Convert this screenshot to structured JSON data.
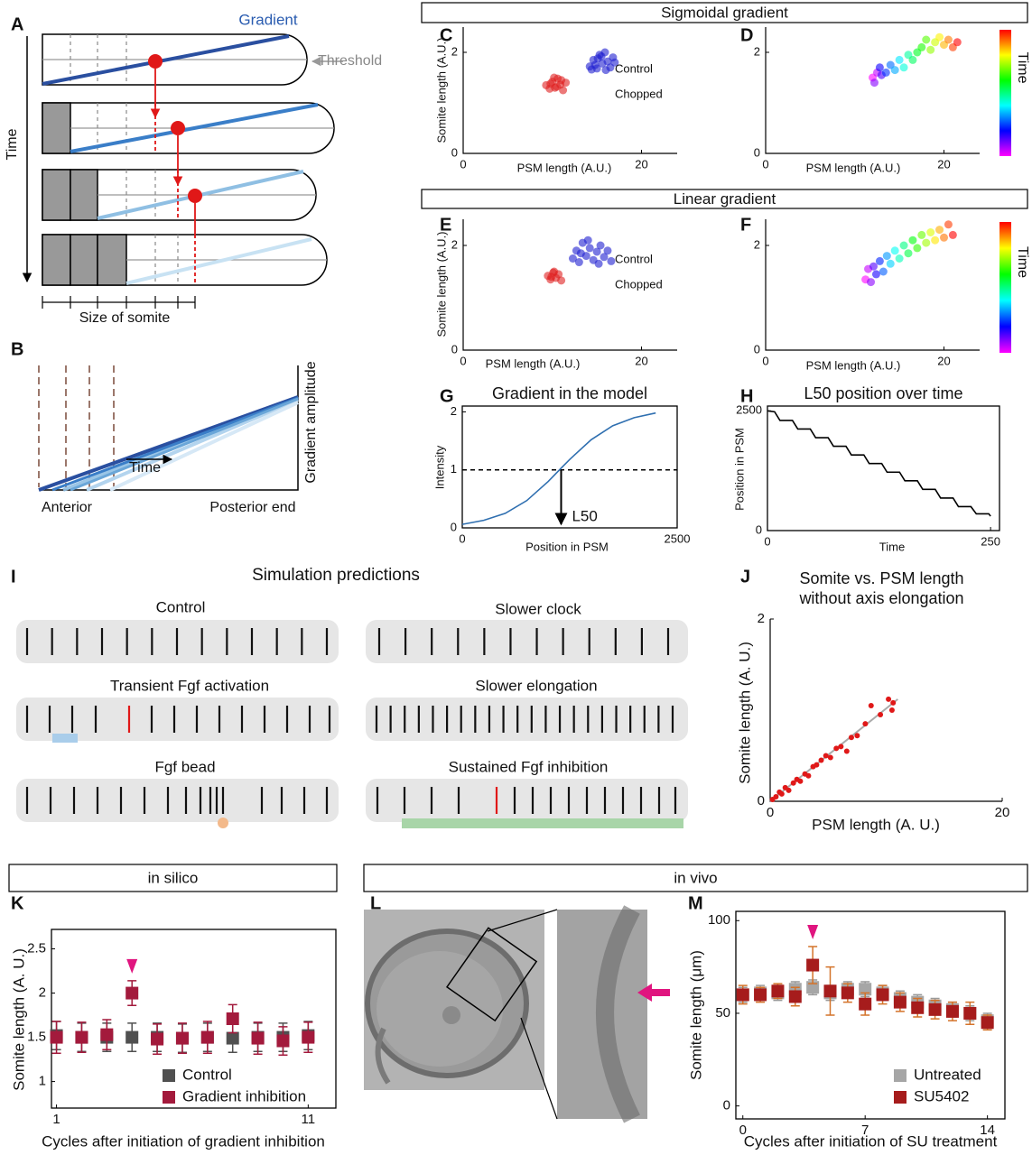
{
  "panel_letters": [
    "A",
    "B",
    "C",
    "D",
    "E",
    "F",
    "G",
    "H",
    "I",
    "J",
    "K",
    "L",
    "M"
  ],
  "headers": [
    "Sigmoidal gradient",
    "Linear gradient",
    "in silico",
    "in vivo"
  ],
  "diagram_a": {
    "gradient": "Gradient",
    "threshold": "Threshold",
    "time": "Time",
    "size": "Size of somite"
  },
  "diagram_b": {
    "time": "Time",
    "anterior": "Anterior",
    "posterior": "Posterior end",
    "amplitude": "Gradient amplitude"
  },
  "simulation": {
    "title": "Simulation predictions",
    "conditions": [
      {
        "label": "Control",
        "color": "#111111"
      },
      {
        "label": "Slower clock",
        "color": "#3b3b9a"
      },
      {
        "label": "Transient Fgf activation",
        "color": "#3a8dc5"
      },
      {
        "label": "Slower elongation",
        "color": "#7a1a1a"
      },
      {
        "label": "Fgf bead",
        "color": "#e07b2a"
      },
      {
        "label": "Sustained Fgf inhibition",
        "color": "#2e8b3a"
      }
    ]
  },
  "chart_data": [
    {
      "type": "scatter",
      "frame": "axes",
      "xlabel": "PSM length (A.U.)",
      "ylabel": "Somite length (A.U.)",
      "xlim": [
        0,
        24
      ],
      "ylim": [
        0,
        2.5
      ],
      "xticks": [
        0,
        20
      ],
      "yticks": [
        0,
        2
      ],
      "legend": true,
      "series": [
        {
          "name": "Control",
          "color": "#1f1fd0",
          "x": [
            14.2,
            14.6,
            15.0,
            15.3,
            15.6,
            15.9,
            16.2,
            16.5,
            16.8,
            15.1,
            14.8,
            16.0,
            17.0,
            15.5,
            14.4
          ],
          "values": [
            1.72,
            1.85,
            1.68,
            1.95,
            1.78,
            2.0,
            1.82,
            1.7,
            1.9,
            1.88,
            1.75,
            1.65,
            1.8,
            1.92,
            1.66
          ]
        },
        {
          "name": "Chopped",
          "color": "#e02020",
          "x": [
            9.3,
            9.7,
            10.0,
            10.3,
            10.6,
            10.9,
            11.2,
            11.5,
            10.2,
            9.8,
            11.0,
            10.5
          ],
          "values": [
            1.35,
            1.28,
            1.42,
            1.3,
            1.48,
            1.36,
            1.25,
            1.4,
            1.5,
            1.38,
            1.45,
            1.32
          ]
        }
      ]
    },
    {
      "type": "scatter",
      "frame": "axes",
      "xlabel": "PSM length (A.U.)",
      "colormap": "rainbow",
      "colorbar_label": "Time",
      "xlim": [
        0,
        24
      ],
      "ylim": [
        0,
        2.5
      ],
      "xticks": [
        0,
        20
      ],
      "yticks": [
        0,
        2
      ],
      "series": [
        {
          "x": [
            12,
            12.5,
            12.2,
            13,
            12.8,
            13.5,
            14,
            14.5,
            15,
            15.5,
            16,
            16.5,
            17,
            17.5,
            18,
            18.5,
            19,
            19.5,
            20,
            20.5,
            21,
            21.5
          ],
          "values": [
            1.5,
            1.6,
            1.4,
            1.55,
            1.7,
            1.6,
            1.75,
            1.65,
            1.85,
            1.7,
            1.95,
            1.85,
            2.0,
            2.1,
            2.25,
            2.05,
            2.2,
            2.3,
            2.15,
            2.25,
            2.1,
            2.2
          ]
        }
      ]
    },
    {
      "type": "scatter",
      "frame": "axes",
      "xlabel": "PSM length (A.U.)",
      "ylabel": "Somite length (A.U.)",
      "xlim": [
        0,
        24
      ],
      "ylim": [
        0,
        2.5
      ],
      "xticks": [
        0,
        20
      ],
      "yticks": [
        0,
        2
      ],
      "legend": true,
      "series": [
        {
          "name": "Control",
          "color": "#1f1fd0",
          "x": [
            12.3,
            12.7,
            13.0,
            13.4,
            13.8,
            14.2,
            14.6,
            15.0,
            15.4,
            15.8,
            16.2,
            16.6,
            13.2,
            14.0,
            15.2
          ],
          "values": [
            1.75,
            1.9,
            1.68,
            2.05,
            1.8,
            1.95,
            1.72,
            1.88,
            2.0,
            1.78,
            1.9,
            1.7,
            1.85,
            2.1,
            1.65
          ]
        },
        {
          "name": "Chopped",
          "color": "#e02020",
          "x": [
            9.5,
            9.8,
            10.1,
            10.4,
            10.7,
            11.0,
            10.2,
            9.9
          ],
          "values": [
            1.42,
            1.35,
            1.48,
            1.38,
            1.45,
            1.33,
            1.5,
            1.4
          ]
        }
      ]
    },
    {
      "type": "scatter",
      "frame": "axes",
      "xlabel": "PSM length (A.U.)",
      "colormap": "rainbow",
      "colorbar_label": "Time",
      "xlim": [
        0,
        24
      ],
      "ylim": [
        0,
        2.5
      ],
      "xticks": [
        0,
        20
      ],
      "yticks": [
        0,
        2
      ],
      "series": [
        {
          "x": [
            11.2,
            11.5,
            11.8,
            12.1,
            12.4,
            12.8,
            13.2,
            13.6,
            14,
            14.5,
            15,
            15.5,
            16,
            16.5,
            17,
            17.5,
            18,
            18.5,
            19,
            19.5,
            20,
            20.5,
            21
          ],
          "values": [
            1.35,
            1.55,
            1.3,
            1.6,
            1.45,
            1.7,
            1.5,
            1.8,
            1.65,
            1.9,
            1.75,
            2.0,
            1.85,
            2.1,
            1.95,
            2.2,
            2.05,
            2.25,
            2.1,
            2.3,
            2.15,
            2.4,
            2.2
          ]
        }
      ]
    },
    {
      "type": "line",
      "frame": "box",
      "title": "Gradient in the model",
      "xlabel": "Position in PSM",
      "ylabel": "Intensity",
      "xlim": [
        0,
        2500
      ],
      "ylim": [
        0,
        2.1
      ],
      "xticks": [
        0,
        2500
      ],
      "yticks": [
        0,
        1,
        2
      ],
      "threshold": 1,
      "annotation": {
        "text": "L50",
        "x": 1150
      },
      "series": [
        {
          "color": "#2f6fb0",
          "x": [
            0,
            250,
            500,
            750,
            1000,
            1150,
            1250,
            1500,
            1750,
            2000,
            2250
          ],
          "values": [
            0.06,
            0.13,
            0.25,
            0.47,
            0.8,
            1.03,
            1.18,
            1.52,
            1.76,
            1.9,
            1.98
          ]
        }
      ]
    },
    {
      "type": "line",
      "frame": "box",
      "title": "L50 position over time",
      "xlabel": "Time",
      "ylabel": "Position in PSM",
      "xlim": [
        0,
        260
      ],
      "ylim": [
        0,
        2600
      ],
      "xticks": [
        0,
        250
      ],
      "yticks": [
        0,
        2500
      ],
      "series": [
        {
          "color": "#000000",
          "x": [
            0,
            8,
            14,
            28,
            34,
            48,
            54,
            68,
            74,
            88,
            94,
            108,
            114,
            128,
            134,
            148,
            154,
            168,
            174,
            188,
            194,
            208,
            214,
            228,
            234,
            248,
            250
          ],
          "values": [
            2500,
            2480,
            2300,
            2300,
            2120,
            2120,
            1940,
            1940,
            1760,
            1760,
            1580,
            1580,
            1400,
            1400,
            1220,
            1220,
            1040,
            1040,
            860,
            860,
            680,
            680,
            500,
            500,
            350,
            350,
            300
          ]
        }
      ]
    },
    {
      "type": "scatter",
      "frame": "axes",
      "title": [
        "Somite vs. PSM length",
        "without axis elongation"
      ],
      "xlabel": "PSM length (A. U.)",
      "ylabel": "Somite length (A. U.)",
      "xlim": [
        0,
        20
      ],
      "ylim": [
        0,
        2
      ],
      "xticks": [
        0,
        20
      ],
      "yticks": [
        0,
        2
      ],
      "fit": {
        "color": "#aaaaaa",
        "x": [
          0,
          11
        ],
        "values": [
          0,
          1.12
        ]
      },
      "series": [
        {
          "color": "#e01818",
          "x": [
            0.2,
            0.5,
            0.8,
            1.0,
            1.3,
            1.6,
            2.0,
            2.3,
            2.6,
            3.0,
            3.3,
            3.7,
            4.0,
            4.4,
            4.8,
            5.2,
            5.7,
            6.1,
            6.6,
            7.0,
            7.5,
            8.2,
            8.7,
            9.5,
            10.2,
            10.5,
            10.6
          ],
          "values": [
            0.02,
            0.05,
            0.1,
            0.08,
            0.15,
            0.12,
            0.2,
            0.24,
            0.22,
            0.3,
            0.28,
            0.38,
            0.4,
            0.45,
            0.5,
            0.48,
            0.58,
            0.6,
            0.55,
            0.7,
            0.72,
            0.85,
            1.05,
            0.95,
            1.12,
            1.0,
            1.08
          ]
        }
      ]
    },
    {
      "type": "errorbar",
      "frame": "box",
      "xlabel": "Cycles after initiation of gradient inhibition",
      "ylabel": "Somite length (A. U.)",
      "xlim": [
        0.8,
        12.1
      ],
      "ylim": [
        0.7,
        2.72
      ],
      "xticks": [
        1,
        11
      ],
      "yticks": [
        1,
        1.5,
        2,
        2.5
      ],
      "x": [
        1,
        2,
        3,
        4,
        5,
        6,
        7,
        8,
        9,
        10,
        11
      ],
      "annotation": {
        "x": 4,
        "color": "#e0157f"
      },
      "series": [
        {
          "name": "Control",
          "color": "#505050",
          "values": [
            1.52,
            1.5,
            1.5,
            1.5,
            1.5,
            1.49,
            1.5,
            1.49,
            1.5,
            1.5,
            1.52
          ],
          "errors": [
            0.16,
            0.16,
            0.16,
            0.16,
            0.16,
            0.16,
            0.16,
            0.16,
            0.16,
            0.16,
            0.16
          ]
        },
        {
          "name": "Gradient inhibition",
          "color": "#a31a3c",
          "values": [
            1.5,
            1.5,
            1.53,
            2.0,
            1.48,
            1.49,
            1.5,
            1.71,
            1.49,
            1.46,
            1.5
          ],
          "errors": [
            0.18,
            0.17,
            0.17,
            0.14,
            0.17,
            0.17,
            0.18,
            0.16,
            0.18,
            0.16,
            0.17
          ]
        }
      ]
    },
    {
      "type": "errorbar",
      "frame": "box",
      "xlabel": "Cycles after initiation of SU treatment",
      "ylabel": "Somite length (μm)",
      "xlim": [
        -0.4,
        15
      ],
      "ylim": [
        -7,
        105
      ],
      "xticks": [
        0,
        7,
        14
      ],
      "yticks": [
        0,
        50,
        100
      ],
      "x": [
        0,
        1,
        2,
        3,
        4,
        5,
        6,
        7,
        8,
        9,
        10,
        11,
        12,
        13,
        14
      ],
      "annotation": {
        "x": 4,
        "color": "#e0157f"
      },
      "series": [
        {
          "name": "Untreated",
          "color": "#a6a6a6",
          "error_color": "#999999",
          "values": [
            60,
            61,
            61,
            63,
            64,
            61,
            63,
            63,
            61,
            58,
            56,
            54,
            52,
            50,
            46
          ],
          "errors": [
            4,
            4,
            4,
            4,
            4,
            4,
            4,
            4,
            4,
            4,
            4,
            4,
            4,
            4,
            4
          ]
        },
        {
          "name": "SU5402",
          "color": "#a61c1c",
          "error_color": "#d4732a",
          "values": [
            60,
            60,
            62,
            59,
            76,
            62,
            61,
            55,
            60,
            56,
            53,
            52,
            51,
            50,
            45
          ],
          "errors": [
            5,
            4,
            4,
            5,
            10,
            13,
            5,
            6,
            5,
            5,
            5,
            5,
            5,
            6,
            4
          ]
        }
      ]
    }
  ]
}
